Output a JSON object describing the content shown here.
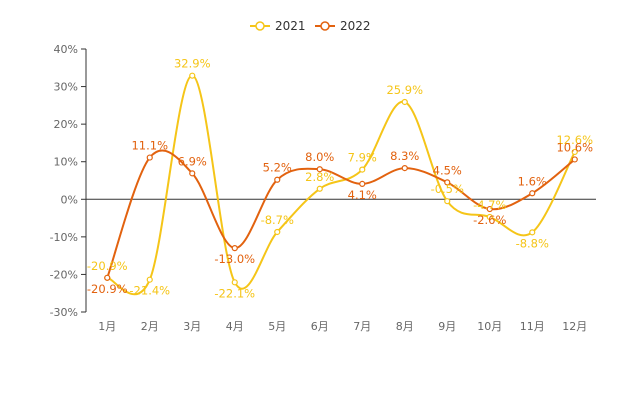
{
  "chart_data": {
    "type": "line",
    "categories": [
      "1月",
      "2月",
      "3月",
      "4月",
      "5月",
      "6月",
      "7月",
      "8月",
      "9月",
      "10月",
      "11月",
      "12月"
    ],
    "series": [
      {
        "name": "2021",
        "color": "#f5c518",
        "values": [
          -20.9,
          -21.4,
          32.9,
          -22.1,
          -8.7,
          2.8,
          7.9,
          25.9,
          -0.5,
          -4.7,
          -8.8,
          12.6
        ],
        "labels": [
          "-20.9%",
          "-21.4%",
          "32.9%",
          "-22.1%",
          "-8.7%",
          "2.8%",
          "7.9%",
          "25.9%",
          "-0.5%",
          "-4.7%",
          "-8.8%",
          "12.6%"
        ]
      },
      {
        "name": "2022",
        "color": "#e2620f",
        "values": [
          -20.9,
          11.1,
          6.9,
          -13.0,
          5.2,
          8.0,
          4.1,
          8.3,
          4.5,
          -2.6,
          1.6,
          10.6
        ],
        "labels": [
          "-20.9%",
          "11.1%",
          "6.9%",
          "-13.0%",
          "5.2%",
          "8.0%",
          "4.1%",
          "8.3%",
          "4.5%",
          "-2.6%",
          "1.6%",
          "10.6%"
        ]
      }
    ],
    "y_ticks": [
      40,
      30,
      20,
      10,
      0,
      -10,
      -20,
      -30
    ],
    "y_tick_labels": [
      "40%",
      "30%",
      "20%",
      "10%",
      "0%",
      "-10%",
      "-20%",
      "-30%"
    ],
    "ylim": [
      -30,
      40
    ],
    "grid": false,
    "legend_position": "top-center"
  }
}
